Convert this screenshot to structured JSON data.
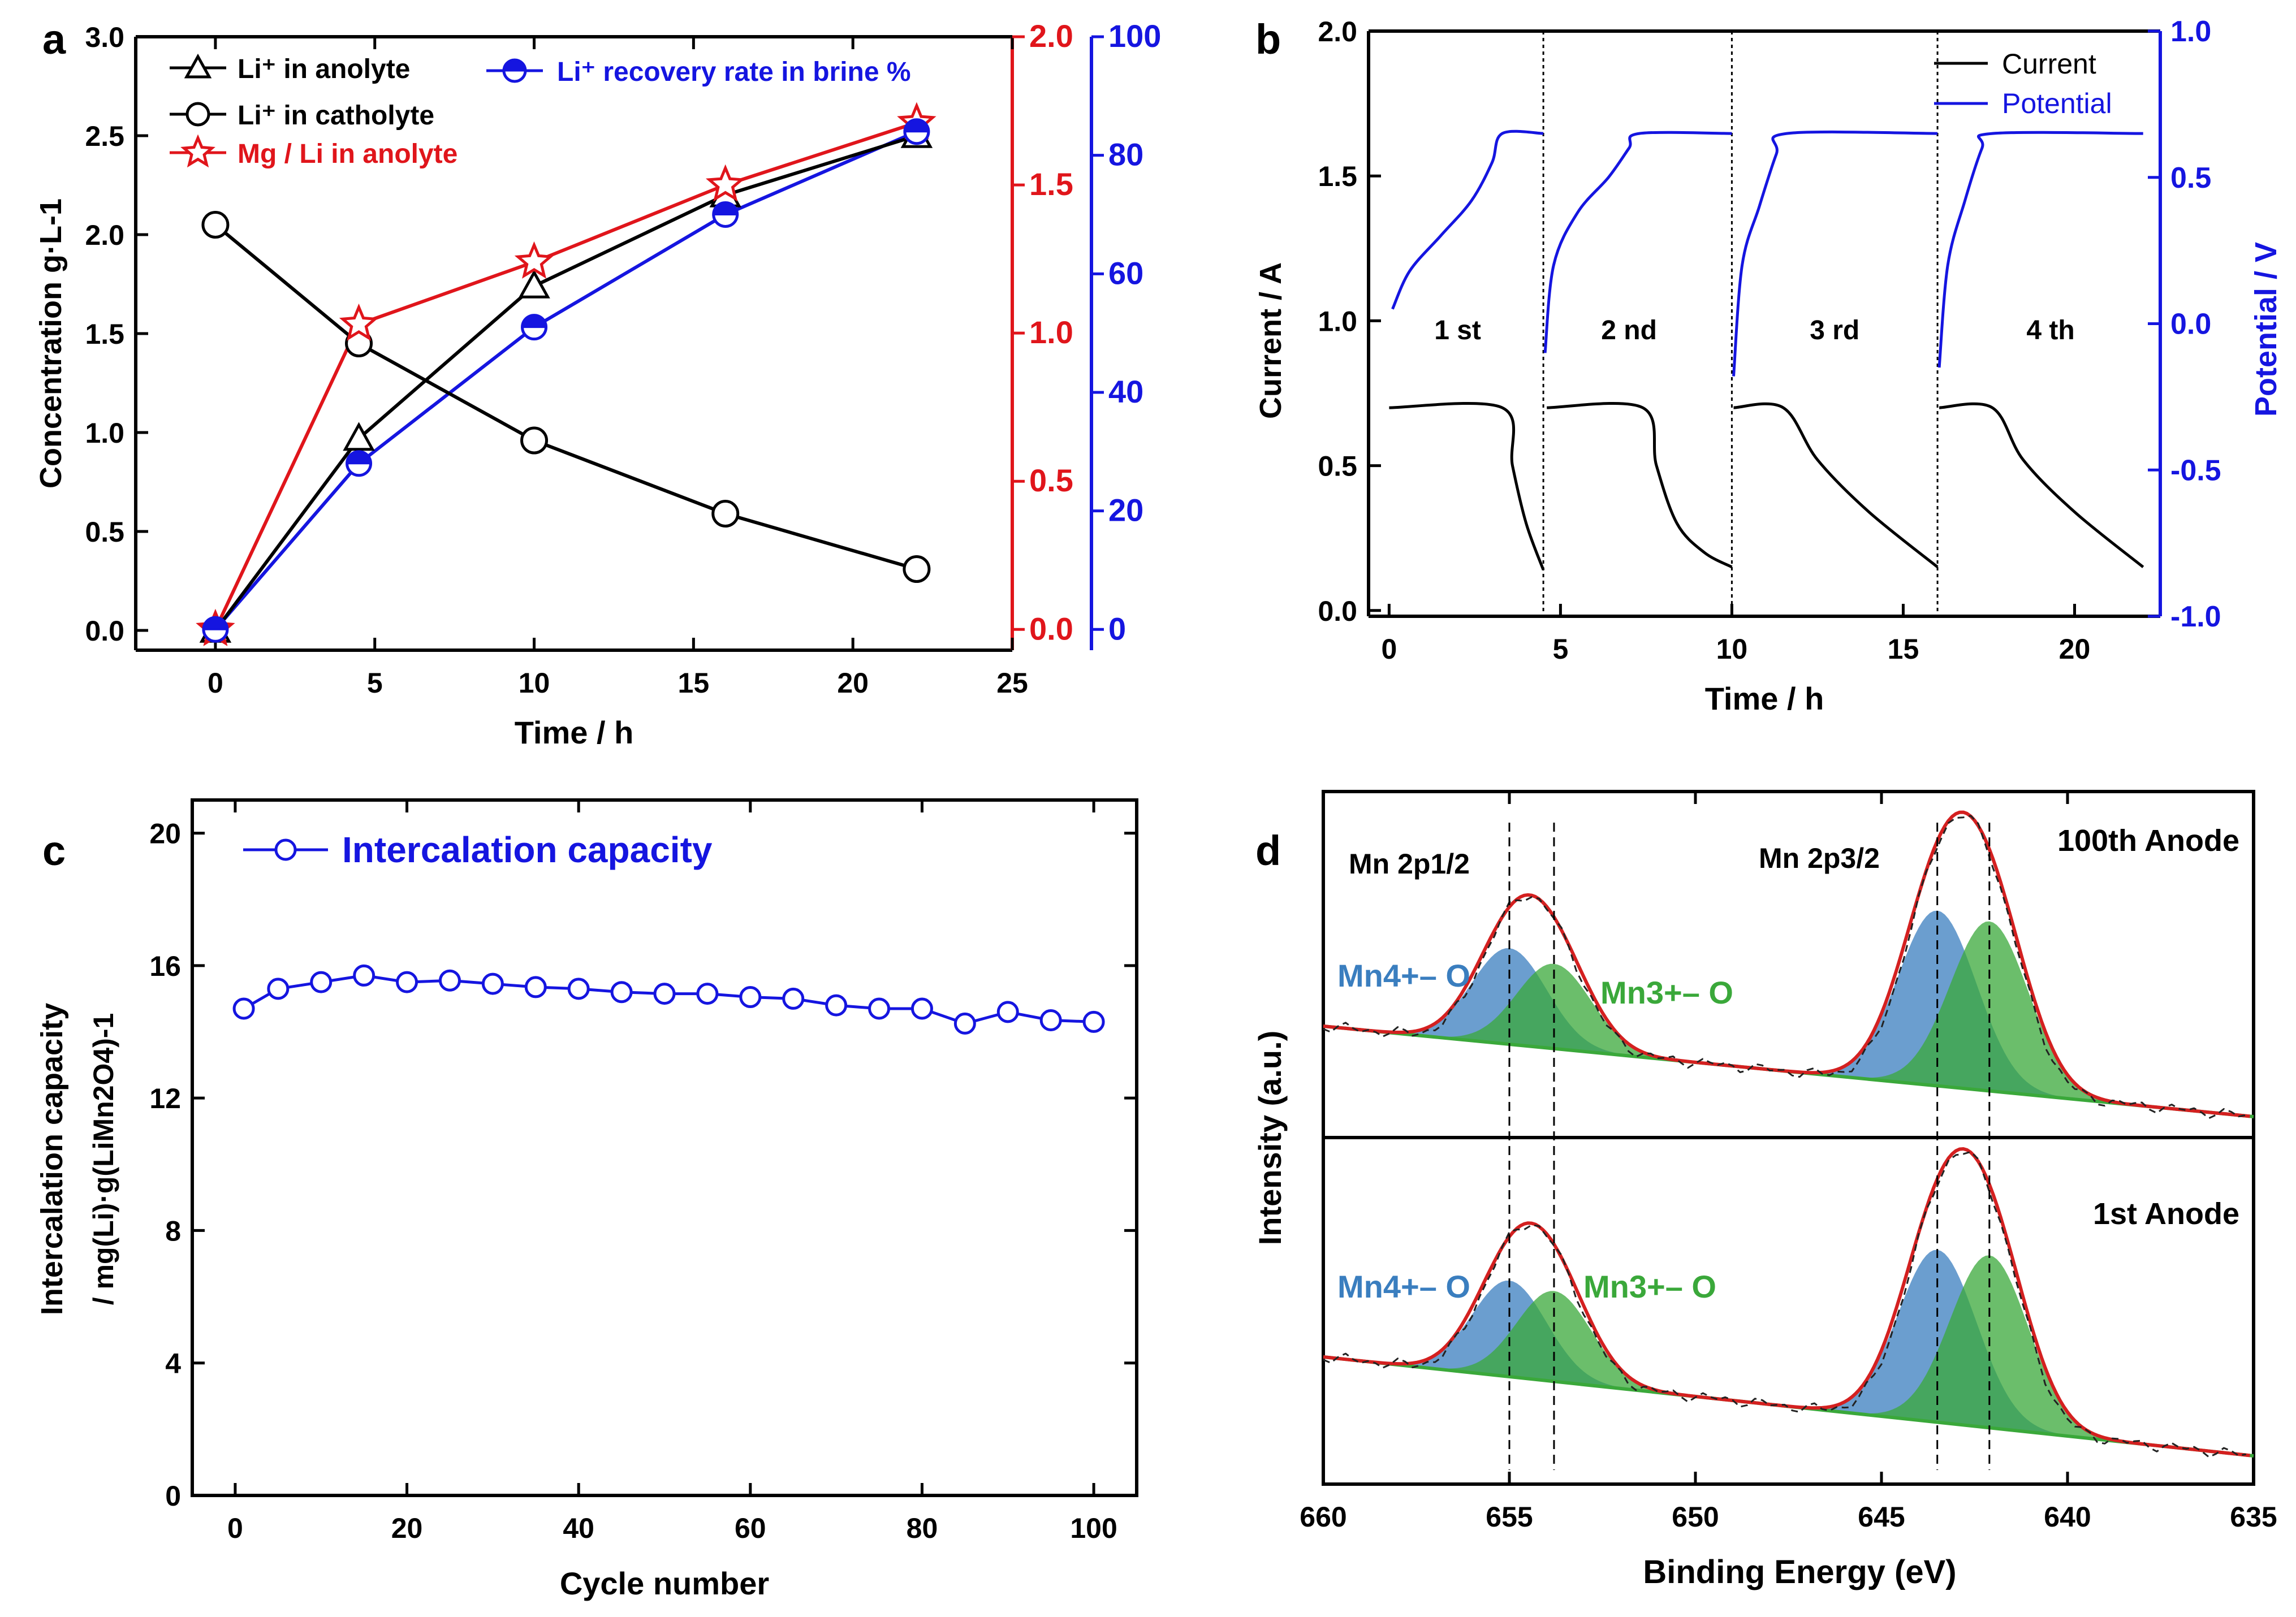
{
  "chart_data": [
    {
      "panel": "a",
      "type": "line",
      "xlabel": "Time / h",
      "xlim": [
        -2.5,
        25
      ],
      "xticks": [
        "0",
        "5",
        "10",
        "15",
        "20",
        "25"
      ],
      "ylabel": "Concentration g·L-1",
      "ylim": [
        -0.1,
        3.0
      ],
      "yticks": [
        "0.0",
        "0.5",
        "1.0",
        "1.5",
        "2.0",
        "2.5",
        "3.0"
      ],
      "y2lim": [
        -0.07,
        2.0
      ],
      "y2ticks": [
        "0.0",
        "0.5",
        "1.0",
        "1.5",
        "2.0"
      ],
      "y3lim": [
        -3.5,
        100
      ],
      "y3ticks": [
        "0",
        "20",
        "40",
        "60",
        "80",
        "100"
      ],
      "series": [
        {
          "name": "Li+ in anolyte",
          "axis": "left",
          "marker": "triangle",
          "color": "#000000",
          "x": [
            0,
            4.5,
            10,
            16,
            22
          ],
          "y": [
            0.0,
            0.97,
            1.74,
            2.2,
            2.5
          ]
        },
        {
          "name": "Li+ in catholyte",
          "axis": "left",
          "marker": "circle",
          "color": "#000000",
          "x": [
            0,
            4.5,
            10,
            16,
            22
          ],
          "y": [
            2.05,
            1.45,
            0.96,
            0.59,
            0.31
          ]
        },
        {
          "name": "Mg / Li in anolyte",
          "axis": "right",
          "marker": "star",
          "color": "#e0151b",
          "x": [
            0,
            4.5,
            10,
            16,
            22
          ],
          "y": [
            0.0,
            1.03,
            1.24,
            1.5,
            1.71
          ]
        },
        {
          "name": "Li+ recovery rate in brine %",
          "axis": "right2",
          "marker": "half-circle",
          "color": "#1515e0",
          "x": [
            0,
            4.5,
            10,
            16,
            22
          ],
          "y": [
            0,
            28,
            51,
            70,
            84
          ]
        }
      ],
      "legend": {
        "anolyte": "Li⁺ in anolyte",
        "catholyte": "Li⁺ in catholyte",
        "mgli": "Mg / Li in anolyte",
        "recovery": "Li⁺ recovery rate in brine %"
      }
    },
    {
      "panel": "b",
      "type": "line",
      "xlabel": "Time / h",
      "xlim": [
        -0.6,
        22.5
      ],
      "xticks": [
        "0",
        "5",
        "10",
        "15",
        "20"
      ],
      "ylabel": "Current / A",
      "ylim": [
        -0.02,
        2.0
      ],
      "yticks": [
        "0.0",
        "0.5",
        "1.0",
        "1.5",
        "2.0"
      ],
      "y2label": "Potential / V",
      "y2lim": [
        -1.0,
        1.0
      ],
      "y2ticks": [
        "-1.0",
        "-0.5",
        "0.0",
        "0.5",
        "1.0"
      ],
      "cycle_boundaries": [
        4.5,
        10,
        16
      ],
      "cycle_labels": [
        "1 st",
        "2 nd",
        "3 rd",
        "4 th"
      ],
      "legend": [
        "Current",
        "Potential"
      ],
      "series": [
        {
          "name": "Current",
          "color": "#000000",
          "cycles": [
            {
              "x": [
                0,
                3.3,
                3.6,
                4.0,
                4.5
              ],
              "y": [
                0.7,
                0.7,
                0.5,
                0.3,
                0.14
              ]
            },
            {
              "x": [
                4.6,
                7.4,
                7.8,
                8.4,
                9.2,
                10
              ],
              "y": [
                0.7,
                0.7,
                0.5,
                0.3,
                0.2,
                0.15
              ]
            },
            {
              "x": [
                10.05,
                11.5,
                12.5,
                14.0,
                16
              ],
              "y": [
                0.7,
                0.7,
                0.52,
                0.34,
                0.15
              ]
            },
            {
              "x": [
                16.05,
                17.6,
                18.5,
                20.0,
                22
              ],
              "y": [
                0.7,
                0.7,
                0.52,
                0.34,
                0.15
              ]
            }
          ]
        },
        {
          "name": "Potential",
          "color": "#1515e0",
          "cycles": [
            {
              "x": [
                0.1,
                0.6,
                1.5,
                2.4,
                3.0,
                3.3,
                4.5
              ],
              "y": [
                0.05,
                0.18,
                0.3,
                0.42,
                0.55,
                0.65,
                0.65
              ]
            },
            {
              "x": [
                4.55,
                4.8,
                5.5,
                6.4,
                7.0,
                7.3,
                10
              ],
              "y": [
                -0.1,
                0.2,
                0.38,
                0.5,
                0.6,
                0.65,
                0.65
              ]
            },
            {
              "x": [
                10.05,
                10.3,
                10.8,
                11.3,
                11.6,
                16
              ],
              "y": [
                -0.18,
                0.2,
                0.4,
                0.58,
                0.65,
                0.65
              ]
            },
            {
              "x": [
                16.05,
                16.3,
                16.8,
                17.3,
                17.6,
                22
              ],
              "y": [
                -0.15,
                0.2,
                0.42,
                0.6,
                0.65,
                0.65
              ]
            }
          ]
        }
      ]
    },
    {
      "panel": "c",
      "type": "scatter",
      "xlabel": "Cycle number",
      "xlim": [
        -5,
        105
      ],
      "xticks": [
        "0",
        "20",
        "40",
        "60",
        "80",
        "100"
      ],
      "ylabel": "Intercalation capacity",
      "ylabel2": "/ mg(Li)·g(LiMn2O4)-1",
      "ylim": [
        0,
        21
      ],
      "yticks": [
        "0",
        "4",
        "8",
        "12",
        "16",
        "20"
      ],
      "legend": "Intercalation capacity",
      "color": "#1515e0",
      "x": [
        1,
        5,
        10,
        15,
        20,
        25,
        30,
        35,
        40,
        45,
        50,
        55,
        60,
        65,
        70,
        75,
        80,
        85,
        90,
        95,
        100
      ],
      "y": [
        14.7,
        15.3,
        15.5,
        15.7,
        15.5,
        15.55,
        15.45,
        15.35,
        15.3,
        15.2,
        15.15,
        15.15,
        15.05,
        15.0,
        14.8,
        14.7,
        14.7,
        14.25,
        14.6,
        14.35,
        14.3
      ]
    },
    {
      "panel": "d",
      "type": "line",
      "xlabel": "Binding Energy (eV)",
      "xlim": [
        660,
        635
      ],
      "xticks": [
        "660",
        "655",
        "650",
        "645",
        "640",
        "635"
      ],
      "ylabel": "Intensity (a.u.)",
      "reference_lines": [
        655.0,
        653.8,
        643.5,
        642.1
      ],
      "peaks": [
        {
          "label": "Mn4+ – O",
          "center": 655.0,
          "color": "#3a7ebf"
        },
        {
          "label": "Mn3+ – O",
          "center": 653.8,
          "color": "#3aa83a"
        },
        {
          "label": "Mn4+ – O",
          "center": 643.5,
          "color": "#3a7ebf"
        },
        {
          "label": "Mn3+ – O",
          "center": 642.1,
          "color": "#3aa83a"
        }
      ],
      "spectra": [
        "100th Anode",
        "1st Anode"
      ],
      "region_labels": [
        "Mn 2p1/2",
        "Mn 2p3/2"
      ],
      "peak_labels": {
        "mn4": "Mn4+– O",
        "mn3": "Mn3+– O"
      }
    }
  ],
  "panels": {
    "a": "a",
    "b": "b",
    "c": "c",
    "d": "d"
  }
}
